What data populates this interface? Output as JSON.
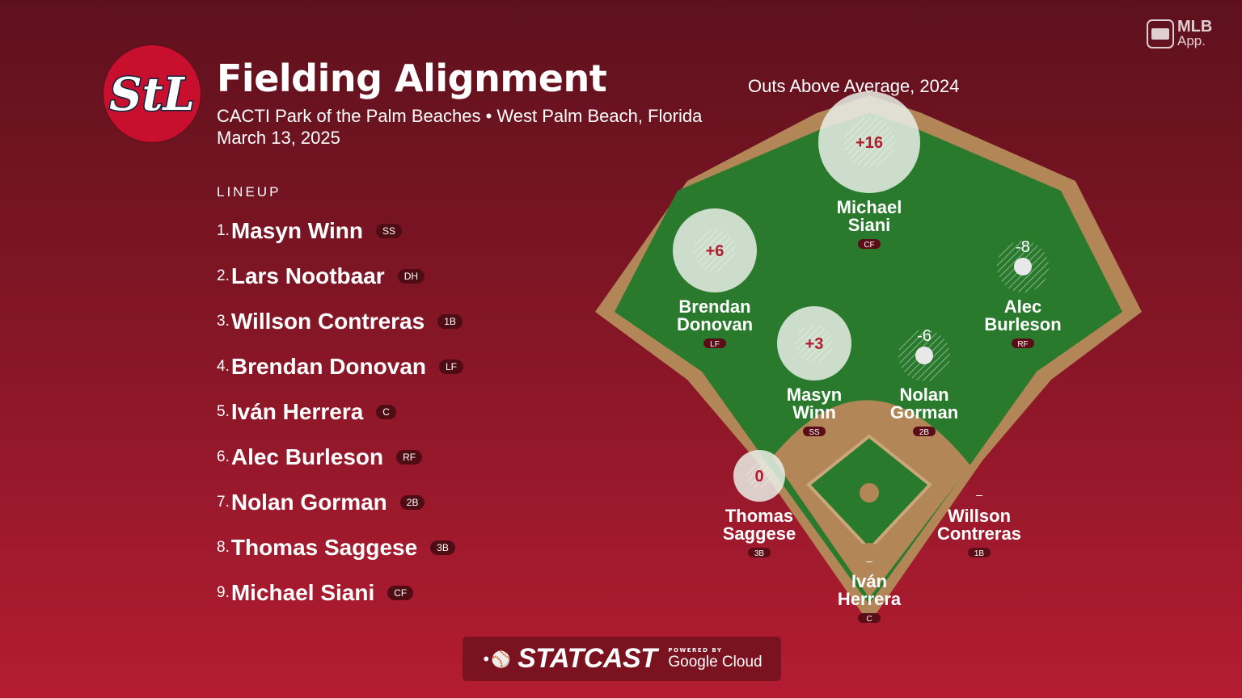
{
  "header": {
    "title": "Fielding Alignment",
    "subtitle": "CACTI Park of the Palm Beaches • West Palm Beach, Florida",
    "date": "March 13, 2025",
    "oaa_label": "Outs Above Average, 2024"
  },
  "brand": {
    "app_name": "MLB",
    "app_suffix": "App.",
    "team_logo_text": "StL"
  },
  "colors": {
    "background_top": "#5e111d",
    "background_bottom": "#b41c32",
    "team_red": "#c8102e",
    "grass": "#2a7a2e",
    "dirt": "#b28656"
  },
  "lineup": {
    "heading": "LINEUP",
    "players": [
      {
        "num": "1.",
        "name": "Masyn Winn",
        "pos": "SS"
      },
      {
        "num": "2.",
        "name": "Lars Nootbaar",
        "pos": "DH"
      },
      {
        "num": "3.",
        "name": "Willson Contreras",
        "pos": "1B"
      },
      {
        "num": "4.",
        "name": "Brendan Donovan",
        "pos": "LF"
      },
      {
        "num": "5.",
        "name": "Iván Herrera",
        "pos": "C"
      },
      {
        "num": "6.",
        "name": "Alec Burleson",
        "pos": "RF"
      },
      {
        "num": "7.",
        "name": "Nolan Gorman",
        "pos": "2B"
      },
      {
        "num": "8.",
        "name": "Thomas Saggese",
        "pos": "3B"
      },
      {
        "num": "9.",
        "name": "Michael Siani",
        "pos": "CF"
      }
    ]
  },
  "field": {
    "players": [
      {
        "id": "cf",
        "name1": "Michael",
        "name2": "Siani",
        "pos": "CF",
        "oaa": "+16"
      },
      {
        "id": "lf",
        "name1": "Brendan",
        "name2": "Donovan",
        "pos": "LF",
        "oaa": "+6"
      },
      {
        "id": "rf",
        "name1": "Alec",
        "name2": "Burleson",
        "pos": "RF",
        "oaa": "-8"
      },
      {
        "id": "ss",
        "name1": "Masyn",
        "name2": "Winn",
        "pos": "SS",
        "oaa": "+3"
      },
      {
        "id": "2b",
        "name1": "Nolan",
        "name2": "Gorman",
        "pos": "2B",
        "oaa": "-6"
      },
      {
        "id": "3b",
        "name1": "Thomas",
        "name2": "Saggese",
        "pos": "3B",
        "oaa": "0"
      },
      {
        "id": "1b",
        "name1": "Willson",
        "name2": "Contreras",
        "pos": "1B",
        "oaa": "–"
      },
      {
        "id": "c",
        "name1": "Iván",
        "name2": "Herrera",
        "pos": "C",
        "oaa": "–"
      }
    ]
  },
  "footer": {
    "statcast": "STATCAST",
    "powered_by": "POWERED BY",
    "google_cloud": "Google Cloud"
  }
}
